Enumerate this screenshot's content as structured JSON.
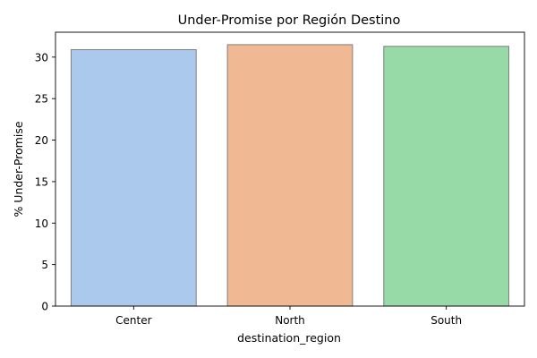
{
  "chart_data": {
    "type": "bar",
    "title": "Under-Promise por Región Destino",
    "xlabel": "destination_region",
    "ylabel": "% Under-Promise",
    "categories": [
      "Center",
      "North",
      "South"
    ],
    "values": [
      30.9,
      31.5,
      31.3
    ],
    "colors": [
      "#abc9ed",
      "#f0b893",
      "#98d9a8"
    ],
    "edge_color": "#7f7f7f",
    "ylim": [
      0,
      33
    ],
    "yticks": [
      0,
      5,
      10,
      15,
      20,
      25,
      30
    ],
    "grid": false,
    "legend": "none"
  }
}
